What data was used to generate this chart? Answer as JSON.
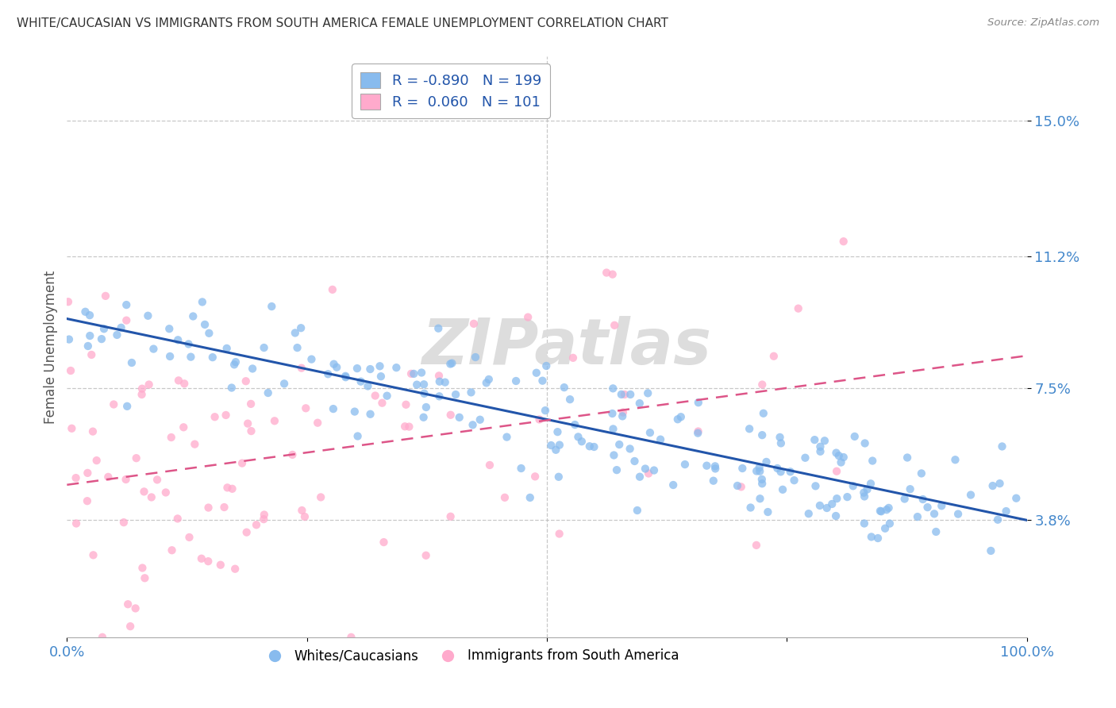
{
  "title": "WHITE/CAUCASIAN VS IMMIGRANTS FROM SOUTH AMERICA FEMALE UNEMPLOYMENT CORRELATION CHART",
  "source": "Source: ZipAtlas.com",
  "ylabel": "Female Unemployment",
  "yticks": [
    0.038,
    0.075,
    0.112,
    0.15
  ],
  "ytick_labels": [
    "3.8%",
    "7.5%",
    "11.2%",
    "15.0%"
  ],
  "xlim": [
    0.0,
    1.0
  ],
  "ylim": [
    0.005,
    0.168
  ],
  "blue_color": "#88bbee",
  "pink_color": "#ffaacc",
  "blue_line_color": "#2255aa",
  "pink_line_color": "#dd5588",
  "watermark": "ZIPatlas",
  "watermark_color": "#dddddd",
  "legend_label1": "Whites/Caucasians",
  "legend_label2": "Immigrants from South America",
  "background_color": "#ffffff",
  "grid_color": "#bbbbbb",
  "title_color": "#333333",
  "ytick_color": "#4488cc",
  "xtick_color": "#4488cc",
  "axis_label_color": "#555555"
}
